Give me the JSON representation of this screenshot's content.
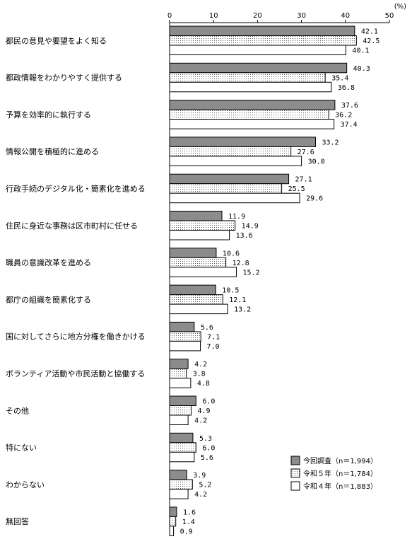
{
  "chart_data": {
    "type": "bar",
    "orientation": "horizontal",
    "unit_label": "(%)",
    "xlim": [
      0,
      50
    ],
    "ticks": [
      0,
      10,
      20,
      30,
      40,
      50
    ],
    "grid": false,
    "legend_position": "bottom-right",
    "categories": [
      "都民の意見や要望をよく知る",
      "都政情報をわかりやすく提供する",
      "予算を効率的に執行する",
      "情報公開を積極的に進める",
      "行政手続のデジタル化・簡素化を進める",
      "住民に身近な事務は区市町村に任せる",
      "職員の意識改革を進める",
      "都庁の組織を簡素化する",
      "国に対してさらに地方分権を働きかける",
      "ボランティア活動や市民活動と協働する",
      "その他",
      "特にない",
      "わからない",
      "無回答"
    ],
    "series": [
      {
        "name": "今回調査（n＝1,994）",
        "fill": "#8c8c8c",
        "pattern": "solid",
        "values": [
          42.1,
          40.3,
          37.6,
          33.2,
          27.1,
          11.9,
          10.6,
          10.5,
          5.6,
          4.2,
          6.0,
          5.3,
          3.9,
          1.6
        ],
        "labels": [
          "42.1",
          "40.3",
          "37.6",
          "33.2",
          "27.1",
          "11.9",
          "10.6",
          "10.5",
          "5.6",
          "4.2",
          "6.0",
          "5.3",
          "3.9",
          "1.6"
        ]
      },
      {
        "name": "令和５年（n＝1,784）",
        "fill": "#ffffff",
        "pattern": "dotted",
        "values": [
          42.5,
          35.4,
          36.2,
          27.6,
          25.5,
          14.9,
          12.8,
          12.1,
          7.1,
          3.8,
          4.9,
          6.0,
          5.2,
          1.4
        ],
        "labels": [
          "42.5",
          "35.4",
          "36.2",
          "27.6",
          "25.5",
          "14.9",
          "12.8",
          "12.1",
          "7.1",
          "3.8",
          "4.9",
          "6.0",
          "5.2",
          "1.4"
        ]
      },
      {
        "name": "令和４年（n＝1,883）",
        "fill": "#ffffff",
        "pattern": "none",
        "values": [
          40.1,
          36.8,
          37.4,
          30.0,
          29.6,
          13.6,
          15.2,
          13.2,
          7.0,
          4.8,
          4.2,
          5.6,
          4.2,
          0.9
        ],
        "labels": [
          "40.1",
          "36.8",
          "37.4",
          "30.0",
          "29.6",
          "13.6",
          "15.2",
          "13.2",
          "7.0",
          "4.8",
          "4.2",
          "5.6",
          "4.2",
          "0.9"
        ]
      }
    ]
  }
}
